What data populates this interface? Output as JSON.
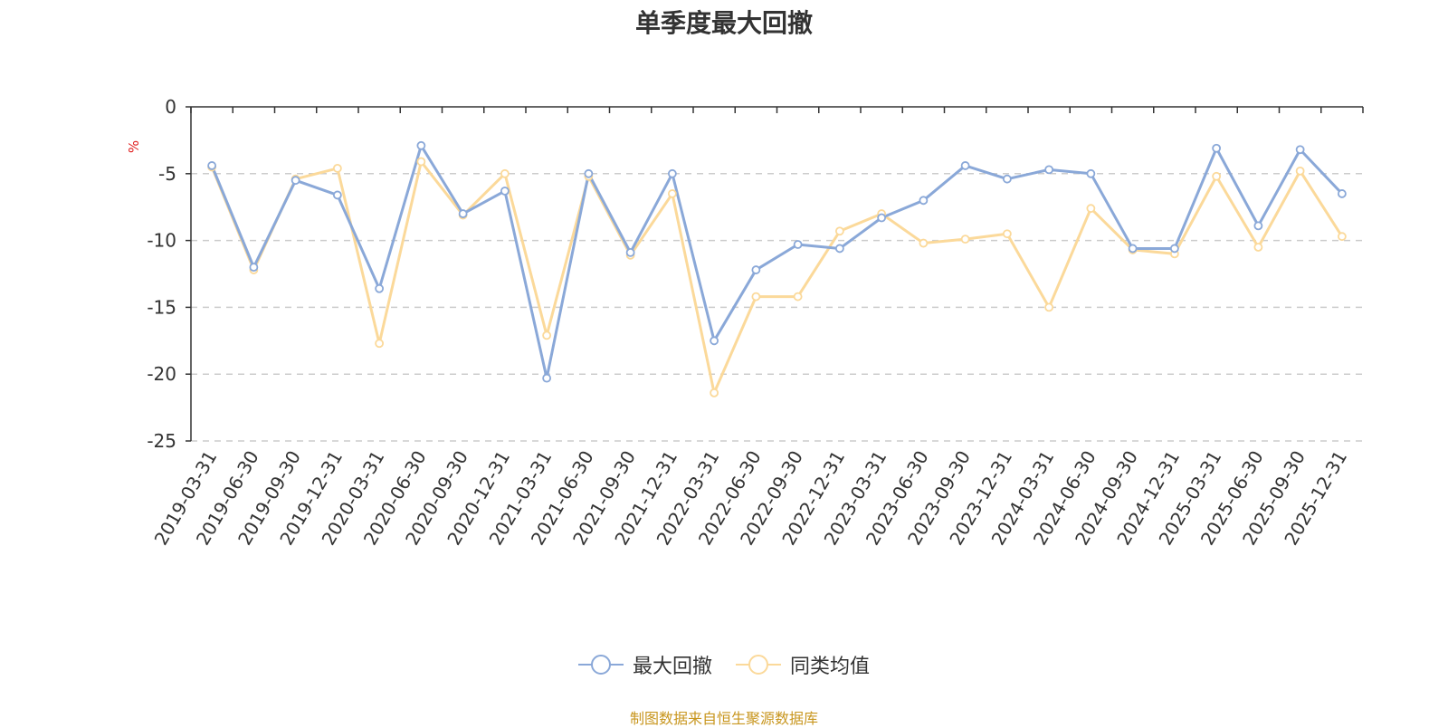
{
  "chart_data": {
    "type": "line",
    "title": "单季度最大回撤",
    "ylabel": "%",
    "ylim": [
      -25,
      0
    ],
    "yticks": [
      0,
      -5,
      -10,
      -15,
      -20,
      -25
    ],
    "grid": "horizontal dashed",
    "legend_position": "bottom-center",
    "categories": [
      "2019-03-31",
      "2019-06-30",
      "2019-09-30",
      "2019-12-31",
      "2020-03-31",
      "2020-06-30",
      "2020-09-30",
      "2020-12-31",
      "2021-03-31",
      "2021-06-30",
      "2021-09-30",
      "2021-12-31",
      "2022-03-31",
      "2022-06-30",
      "2022-09-30",
      "2022-12-31",
      "2023-03-31",
      "2023-06-30",
      "2023-09-30",
      "2023-12-31",
      "2024-03-31",
      "2024-06-30",
      "2024-09-30",
      "2024-12-31",
      "2025-03-31",
      "2025-06-30",
      "2025-09-30",
      "2025-12-31"
    ],
    "series": [
      {
        "name": "最大回撤",
        "color": "#8aa8d8",
        "values": [
          -4.4,
          -12.0,
          -5.5,
          -6.6,
          -13.6,
          -2.9,
          -8.0,
          -6.3,
          -20.3,
          -5.0,
          -10.9,
          -5.0,
          -17.5,
          -12.2,
          -10.3,
          -10.6,
          -8.3,
          -7.0,
          -4.4,
          -5.4,
          -4.7,
          -5.0,
          -10.6,
          -10.6,
          -3.1,
          -8.9,
          -3.2,
          -6.5
        ]
      },
      {
        "name": "同类均值",
        "color": "#fbd99a",
        "values": [
          -4.5,
          -12.2,
          -5.4,
          -4.6,
          -17.7,
          -4.1,
          -8.1,
          -5.0,
          -17.1,
          -5.2,
          -11.1,
          -6.5,
          -21.4,
          -14.2,
          -14.2,
          -9.3,
          -8.0,
          -10.2,
          -9.9,
          -9.5,
          -15.0,
          -7.6,
          -10.7,
          -11.0,
          -5.2,
          -10.5,
          -4.8,
          -9.7
        ]
      }
    ]
  },
  "legend": {
    "items": [
      "最大回撤",
      "同类均值"
    ]
  },
  "source_note": "制图数据来自恒生聚源数据库",
  "colors": {
    "axis": "#333333",
    "grid": "#cccccc",
    "ylabel": "#e02020",
    "source_note": "#c8961e"
  }
}
